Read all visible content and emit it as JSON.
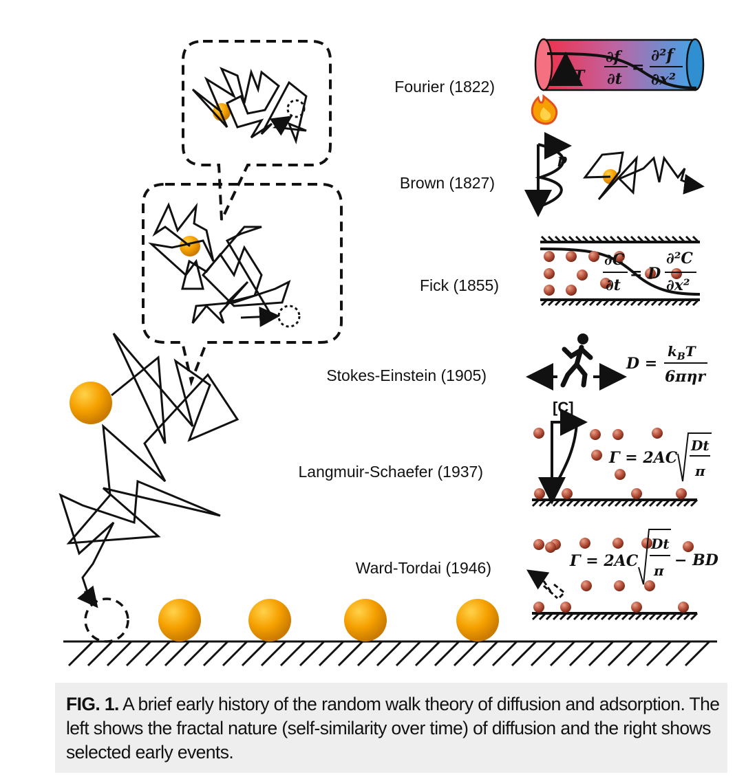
{
  "events": [
    {
      "label": "Fourier (1822)"
    },
    {
      "label": "Brown (1827)"
    },
    {
      "label": "Fick (1855)"
    },
    {
      "label": "Stokes-Einstein (1905)"
    },
    {
      "label": "Langmuir-Schaefer (1937)"
    },
    {
      "label": "Ward-Tordai (1946)"
    }
  ],
  "equations": {
    "fourier": {
      "T": "T",
      "lhs_num": "∂f",
      "lhs_den": "∂t",
      "eq": "=",
      "rhs_num": "∂²f",
      "rhs_den": "∂x²"
    },
    "brown": {
      "p": "p"
    },
    "fick": {
      "lhs_num": "∂C",
      "lhs_den": "∂t",
      "eq": "= D",
      "rhs_num": "∂²C",
      "rhs_den": "∂x²"
    },
    "stokes": {
      "lhs": "D =",
      "num": "k_BT",
      "den": "6πηr"
    },
    "langmuir": {
      "c_label": "[C]",
      "lhs": "Γ = 2AC",
      "num": "Dt",
      "den": "π"
    },
    "ward": {
      "lhs": "Γ = 2AC",
      "num": "Dt",
      "den": "π",
      "tail": "− BD"
    }
  },
  "caption": {
    "lead": "FIG. 1.",
    "text": " A brief early history of the random walk theory of diffusion and adsorption. The left shows the fractal nature (self-similarity over time) of diffusion and the right shows selected early events."
  },
  "colors": {
    "particle": "#f5a000",
    "particle_dark": "#d98200",
    "molecule": "#b5503a",
    "tube_hot": "#f0304a",
    "tube_cold": "#3aa8ee"
  }
}
